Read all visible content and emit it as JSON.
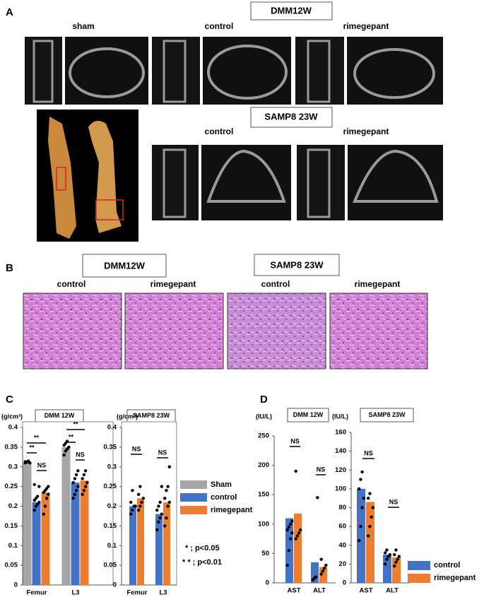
{
  "panel_a": {
    "label": "A",
    "groups": [
      {
        "title": "DMM12W",
        "conditions": [
          "sham",
          "control",
          "rimegepant"
        ]
      },
      {
        "title": "SAMP8  23W",
        "conditions": [
          "control",
          "rimegepant"
        ]
      }
    ]
  },
  "panel_b": {
    "label": "B",
    "groups": [
      {
        "title": "DMM12W",
        "conditions": [
          "control",
          "rimegepant"
        ]
      },
      {
        "title": "SAMP8  23W",
        "conditions": [
          "control",
          "rimegepant"
        ]
      }
    ]
  },
  "panel_c": {
    "label": "C",
    "significance_key": [
      "* ; p<0.05",
      "* * ; p<0.01"
    ]
  },
  "panel_d": {
    "label": "D"
  },
  "chart_data": [
    {
      "type": "bar",
      "title": "DMM 12W",
      "y_label": "(g/cm³)",
      "categories": [
        "Femur",
        "L3"
      ],
      "ylim": [
        0,
        0.4
      ],
      "yticks": [
        0,
        0.05,
        0.1,
        0.15,
        0.2,
        0.25,
        0.3,
        0.35,
        0.4
      ],
      "series": [
        {
          "name": "Sham",
          "color": "#a5a5a5",
          "values": [
            0.31,
            0.35
          ],
          "points": [
            [
              0.31,
              0.312,
              0.315,
              0.31,
              0.313
            ],
            [
              0.33,
              0.34,
              0.345,
              0.35,
              0.355,
              0.36,
              0.365
            ]
          ]
        },
        {
          "name": "control",
          "color": "#4472c4",
          "values": [
            0.21,
            0.26
          ],
          "points": [
            [
              0.19,
              0.2,
              0.205,
              0.21,
              0.215,
              0.22,
              0.225,
              0.25,
              0.255
            ],
            [
              0.22,
              0.23,
              0.24,
              0.25,
              0.26,
              0.27,
              0.28,
              0.29
            ]
          ]
        },
        {
          "name": "rimegepant",
          "color": "#ed7d31",
          "values": [
            0.235,
            0.265
          ],
          "points": [
            [
              0.18,
              0.2,
              0.22,
              0.23,
              0.235,
              0.24,
              0.245,
              0.25
            ],
            [
              0.23,
              0.24,
              0.25,
              0.26,
              0.27,
              0.28,
              0.29
            ]
          ]
        }
      ],
      "annotations": [
        "**",
        "**",
        "NS",
        "**",
        "**",
        "NS"
      ]
    },
    {
      "type": "bar",
      "title": "SAMP8 23W",
      "y_label": "(g/cm³)",
      "categories": [
        "Femur",
        "L3"
      ],
      "ylim": [
        0,
        0.4
      ],
      "yticks": [
        0,
        0.05,
        0.1,
        0.15,
        0.2,
        0.25,
        0.3,
        0.35,
        0.4
      ],
      "series": [
        {
          "name": "control",
          "color": "#4472c4",
          "values": [
            0.2,
            0.18
          ],
          "points": [
            [
              0.18,
              0.19,
              0.2,
              0.2,
              0.21,
              0.24
            ],
            [
              0.14,
              0.16,
              0.17,
              0.18,
              0.19,
              0.2,
              0.21,
              0.25
            ]
          ]
        },
        {
          "name": "rimegepant",
          "color": "#ed7d31",
          "values": [
            0.22,
            0.21
          ],
          "points": [
            [
              0.19,
              0.2,
              0.21,
              0.22,
              0.23,
              0.25
            ],
            [
              0.15,
              0.17,
              0.2,
              0.21,
              0.22,
              0.24,
              0.25,
              0.3
            ]
          ]
        }
      ],
      "annotations": [
        "NS",
        "NS"
      ]
    },
    {
      "type": "bar",
      "title": "DMM 12W",
      "y_label": "(IU/L)",
      "categories": [
        "AST",
        "ALT"
      ],
      "ylim": [
        0,
        250
      ],
      "yticks": [
        0,
        50,
        100,
        150,
        200,
        250
      ],
      "series": [
        {
          "name": "control",
          "color": "#4472c4",
          "values": [
            110,
            35
          ],
          "points": [
            [
              30,
              55,
              75,
              85,
              90,
              95,
              100,
              105
            ],
            [
              5,
              8,
              10,
              145
            ]
          ]
        },
        {
          "name": "rimegepant",
          "color": "#ed7d31",
          "values": [
            118,
            27
          ],
          "points": [
            [
              75,
              80,
              85,
              90,
              190
            ],
            [
              15,
              20,
              25,
              30,
              40
            ]
          ]
        }
      ],
      "annotations": [
        "NS",
        "NS"
      ]
    },
    {
      "type": "bar",
      "title": "SAMP8 23W",
      "y_label": "(IU/L)",
      "categories": [
        "AST",
        "ALT"
      ],
      "ylim": [
        0,
        160
      ],
      "yticks": [
        0,
        20,
        40,
        60,
        80,
        100,
        120,
        140,
        160
      ],
      "series": [
        {
          "name": "control",
          "color": "#4472c4",
          "values": [
            100,
            30
          ],
          "points": [
            [
              45,
              60,
              80,
              90,
              100,
              110,
              118
            ],
            [
              20,
              25,
              28,
              30,
              32,
              35
            ]
          ]
        },
        {
          "name": "rimegepant",
          "color": "#ed7d31",
          "values": [
            86,
            27
          ],
          "points": [
            [
              50,
              60,
              70,
              80,
              90,
              95
            ],
            [
              18,
              22,
              25,
              28,
              30,
              35
            ]
          ]
        }
      ],
      "annotations": [
        "NS",
        "NS"
      ]
    }
  ]
}
